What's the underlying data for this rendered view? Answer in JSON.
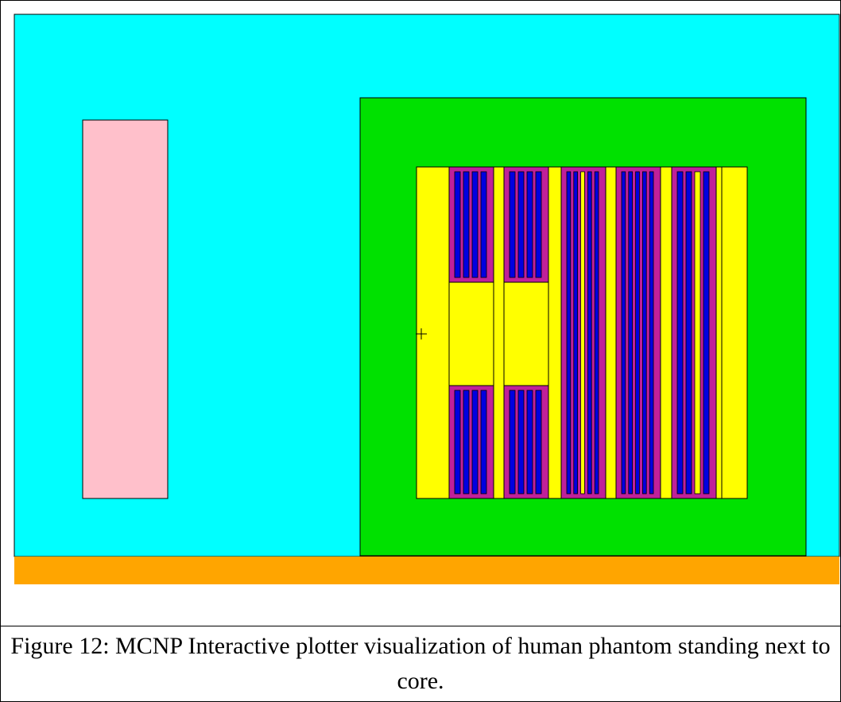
{
  "caption": "Figure 12: MCNP Interactive plotter visualization of human phantom standing next to core.",
  "colors": {
    "air": "#00ffff",
    "floor": "#ffa500",
    "phantom": "#ffc0cb",
    "pool": "#00e100",
    "reflector": "#ffff00",
    "assembly": "#c0209a",
    "fuel": "#0000e0",
    "water_gap": "#ffff00",
    "outline": "#000000"
  },
  "plot": {
    "cursor_symbol": "cross-marker",
    "core": {
      "assemblies": [
        {
          "type": "control",
          "rod_pattern": [
            "fuel",
            "fuel",
            "fuel",
            "fuel"
          ]
        },
        {
          "type": "control",
          "rod_pattern": [
            "fuel",
            "fuel",
            "fuel",
            "fuel"
          ]
        },
        {
          "type": "standard",
          "rod_pattern": [
            "fuel",
            "fuel",
            "water",
            "fuel",
            "fuel"
          ]
        },
        {
          "type": "standard",
          "rod_pattern": [
            "fuel",
            "fuel",
            "fuel",
            "fuel",
            "fuel"
          ]
        },
        {
          "type": "standard",
          "rod_pattern": [
            "fuel",
            "fuel",
            "water",
            "fuel"
          ]
        }
      ]
    }
  }
}
